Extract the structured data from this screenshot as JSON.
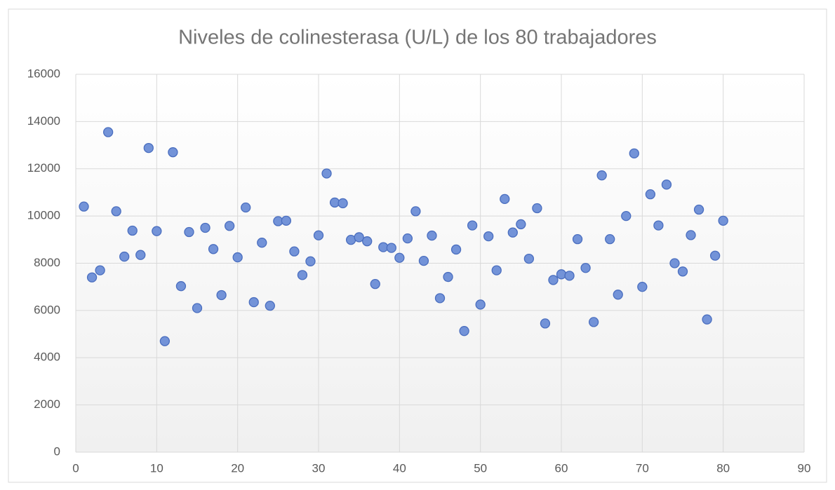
{
  "chart_data": {
    "type": "scatter",
    "title": "Niveles de colinesterasa (U/L) de los 80  trabajadores",
    "x": [
      1,
      2,
      3,
      4,
      5,
      6,
      7,
      8,
      9,
      10,
      11,
      12,
      13,
      14,
      15,
      16,
      17,
      18,
      19,
      20,
      21,
      22,
      23,
      24,
      25,
      26,
      27,
      28,
      29,
      30,
      31,
      32,
      33,
      34,
      35,
      36,
      37,
      38,
      39,
      40,
      41,
      42,
      43,
      44,
      45,
      46,
      47,
      48,
      49,
      50,
      51,
      52,
      53,
      54,
      55,
      56,
      57,
      58,
      59,
      60,
      61,
      62,
      63,
      64,
      65,
      66,
      67,
      68,
      69,
      70,
      71,
      72,
      73,
      74,
      75,
      76,
      77,
      78,
      79,
      80
    ],
    "values": [
      10400,
      7400,
      7700,
      13550,
      10200,
      8280,
      9380,
      8350,
      12880,
      9360,
      4700,
      12700,
      7030,
      9320,
      6100,
      9500,
      8600,
      6650,
      9580,
      8250,
      10360,
      6350,
      8870,
      6200,
      9780,
      9800,
      8500,
      7500,
      8080,
      9180,
      11800,
      10570,
      10540,
      8990,
      9100,
      8930,
      7120,
      8680,
      8650,
      8230,
      9050,
      10200,
      8100,
      9170,
      6520,
      7420,
      8580,
      5130,
      9600,
      6250,
      9140,
      7700,
      10720,
      9300,
      9650,
      8190,
      10330,
      5450,
      7290,
      7530,
      7470,
      9020,
      7800,
      5510,
      11720,
      9020,
      6670,
      10000,
      12650,
      7000,
      10920,
      9600,
      11330,
      8000,
      7650,
      9190,
      10270,
      5620,
      8320,
      9800
    ],
    "color": "#7393d8",
    "xlim": [
      0,
      90
    ],
    "xticks": [
      0,
      10,
      20,
      30,
      40,
      50,
      60,
      70,
      80,
      90
    ],
    "ylim": [
      0,
      16000
    ],
    "yticks": [
      0,
      2000,
      4000,
      6000,
      8000,
      10000,
      12000,
      14000,
      16000
    ],
    "grid": true
  }
}
